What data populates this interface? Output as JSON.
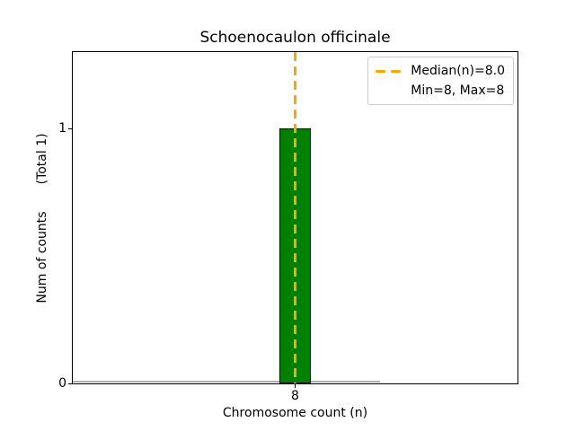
{
  "chart_data": {
    "type": "bar",
    "title": "Schoenocaulon officinale",
    "xlabel": "Chromosome count (n)",
    "ylabel": "Num of counts    (Total 1)",
    "ylabel_parts": [
      "Num of counts",
      "(Total 1)"
    ],
    "total_counts": 1,
    "categories": [
      8
    ],
    "values": [
      1
    ],
    "bar_color": "#008000",
    "bar_edge_color": "#000000",
    "bar_width_data_units": 0.8,
    "xlim": [
      2.3,
      13.7
    ],
    "ylim": [
      0,
      1.3
    ],
    "xticks": [
      {
        "value": 8,
        "label": "8"
      }
    ],
    "yticks": [
      {
        "value": 0,
        "label": "0"
      },
      {
        "value": 1,
        "label": "1"
      }
    ],
    "grid": false,
    "median_line": {
      "value": 8.0,
      "color": "#ffa500",
      "style": "dashed",
      "orientation": "vertical"
    },
    "min": 8,
    "max": 8,
    "zero_baseline": {
      "color": "#b0b0b0",
      "x_extent_fraction": 0.69
    },
    "legend": {
      "position": "upper right",
      "entries": [
        {
          "label": "Median(n)=8.0",
          "handle": "orange-dashed-line",
          "handle_color": "#ffa500"
        },
        {
          "label": "Min=8, Max=8",
          "handle": "none"
        }
      ]
    }
  }
}
